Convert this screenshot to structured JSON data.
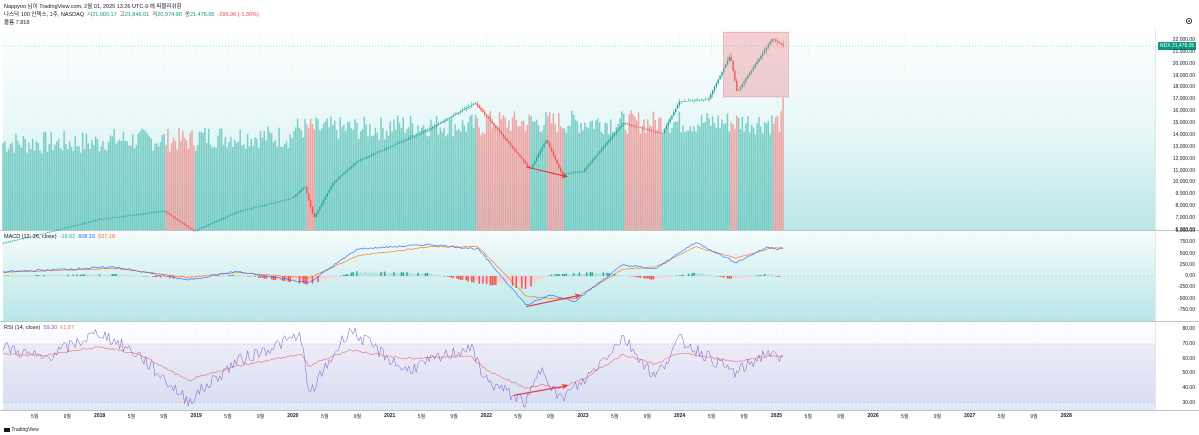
{
  "header": {
    "publisher": "Nappyoo 님이 TradingView.com, 2월 01, 2025 13:26 UTC-9 에 퍼블리쉬함",
    "symbol_line": "나스닥 100 인덱스, 1주, NASDAQ",
    "ohlc": {
      "open_label": "시",
      "open": "21,000.17",
      "high_label": "고",
      "high": "21,846.01",
      "low_label": "저",
      "low": "20,974.90",
      "close_label": "종",
      "close": "21,478.05",
      "change": "-295.96 (-1.36%)"
    },
    "volume_line": "볼륨 7.818"
  },
  "price_tag": "NDX 21,478.05",
  "watermark": "TradingView",
  "colors": {
    "up": "#26a69a",
    "down": "#ef5350",
    "price_bg_top": "#f4fbfb",
    "price_bg_bottom": "#bfe9ea",
    "macd_line": "#2962ff",
    "signal_line": "#ff6d00",
    "rsi_line": "#7e57c2",
    "rsi_ma": "#e57373",
    "annotation": "#e8313b",
    "highlight": "rgba(230,120,125,0.35)"
  },
  "chart_data": [
    {
      "type": "candlestick",
      "title": "나스닥 100 인덱스, 1주, NASDAQ",
      "x_range": [
        "2017-01",
        "2028-12"
      ],
      "ylim": [
        6000,
        23000
      ],
      "y_ticks": [
        "6,000.00",
        "7,000.00",
        "8,000.00",
        "9,000.00",
        "10,000.00",
        "11,000.00",
        "12,000.00",
        "13,000.00",
        "14,000.00",
        "15,000.00",
        "16,000.00",
        "17,000.00",
        "18,000.00",
        "19,000.00",
        "20,000.00",
        "21,000.00",
        "22,000.00"
      ],
      "close_series": [
        [
          "2017-01-01",
          4900
        ],
        [
          "2017-06-01",
          5700
        ],
        [
          "2018-01-01",
          6900
        ],
        [
          "2018-09-01",
          7600
        ],
        [
          "2018-12-24",
          5900
        ],
        [
          "2019-06-01",
          7500
        ],
        [
          "2019-12-31",
          8700
        ],
        [
          "2020-02-15",
          9700
        ],
        [
          "2020-03-20",
          7000
        ],
        [
          "2020-06-01",
          10000
        ],
        [
          "2020-09-01",
          11800
        ],
        [
          "2021-01-01",
          13000
        ],
        [
          "2021-06-01",
          14500
        ],
        [
          "2021-11-19",
          16700
        ],
        [
          "2022-03-01",
          14000
        ],
        [
          "2022-06-16",
          11100
        ],
        [
          "2022-08-15",
          13600
        ],
        [
          "2022-10-13",
          10700
        ],
        [
          "2022-12-31",
          10900
        ],
        [
          "2023-06-01",
          15000
        ],
        [
          "2023-10-27",
          14100
        ],
        [
          "2023-12-31",
          16800
        ],
        [
          "2024-04-19",
          17000
        ],
        [
          "2024-07-10",
          20700
        ],
        [
          "2024-08-05",
          17600
        ],
        [
          "2024-12-16",
          22100
        ],
        [
          "2025-01-31",
          21478
        ]
      ],
      "highlight_box": {
        "x": [
          "2024-06-15",
          "2025-02-15"
        ],
        "y": [
          17200,
          22650
        ]
      },
      "annotation_arrow": {
        "from": [
          "2022-06-01",
          11300
        ],
        "to": [
          "2022-10-31",
          10500
        ]
      }
    },
    {
      "type": "bar",
      "title": "볼륨",
      "note": "weekly volume bars drawn along the bottom of the price pane"
    },
    {
      "type": "line",
      "title": "MACD (12, 26, close)",
      "values_label": "-19.02  608.16  627.18",
      "values": [
        "-19.02",
        "608.16",
        "627.18"
      ],
      "ylim": [
        -1000,
        1000
      ],
      "y_ticks": [
        "1,000.00",
        "750.00",
        "500.00",
        "250.00",
        "0.00",
        "-250.00",
        "-500.00",
        "-750.00"
      ],
      "series": [
        {
          "name": "Histogram",
          "points": [
            [
              "2017-01",
              10
            ],
            [
              "2018-03",
              40
            ],
            [
              "2018-11",
              -60
            ],
            [
              "2019-06",
              30
            ],
            [
              "2020-03",
              -180
            ],
            [
              "2020-09",
              100
            ],
            [
              "2021-06",
              60
            ],
            [
              "2021-12",
              -150
            ],
            [
              "2022-06",
              -250
            ],
            [
              "2022-09",
              30
            ],
            [
              "2023-03",
              90
            ],
            [
              "2023-10",
              -80
            ],
            [
              "2024-03",
              80
            ],
            [
              "2024-08",
              -80
            ],
            [
              "2024-12",
              60
            ],
            [
              "2025-01",
              -19
            ]
          ]
        },
        {
          "name": "MACD",
          "points": [
            [
              "2017-01",
              90
            ],
            [
              "2018-03",
              200
            ],
            [
              "2018-12",
              -90
            ],
            [
              "2019-06",
              100
            ],
            [
              "2020-03",
              -150
            ],
            [
              "2020-09",
              600
            ],
            [
              "2021-06",
              700
            ],
            [
              "2021-12",
              600
            ],
            [
              "2022-06",
              -650
            ],
            [
              "2022-09",
              -420
            ],
            [
              "2022-12",
              -560
            ],
            [
              "2023-06",
              250
            ],
            [
              "2023-10",
              150
            ],
            [
              "2024-03",
              750
            ],
            [
              "2024-08",
              300
            ],
            [
              "2024-12",
              650
            ],
            [
              "2025-01",
              608
            ]
          ]
        },
        {
          "name": "Signal",
          "points": [
            [
              "2017-01",
              80
            ],
            [
              "2018-03",
              170
            ],
            [
              "2018-12",
              -30
            ],
            [
              "2019-06",
              80
            ],
            [
              "2020-03",
              -50
            ],
            [
              "2020-09",
              450
            ],
            [
              "2021-06",
              650
            ],
            [
              "2021-12",
              650
            ],
            [
              "2022-06",
              -450
            ],
            [
              "2022-09",
              -500
            ],
            [
              "2022-12",
              -500
            ],
            [
              "2023-06",
              150
            ],
            [
              "2023-10",
              200
            ],
            [
              "2024-03",
              650
            ],
            [
              "2024-08",
              400
            ],
            [
              "2024-12",
              600
            ],
            [
              "2025-01",
              627
            ]
          ]
        }
      ],
      "annotation_arrow": {
        "from": [
          "2022-06-01",
          -680
        ],
        "to": [
          "2022-12-20",
          -430
        ]
      }
    },
    {
      "type": "line",
      "title": "RSI (14, close)",
      "values_label": "59.30  61.87",
      "values": [
        "59.30",
        "61.87"
      ],
      "ylim": [
        25,
        85
      ],
      "y_ticks": [
        "80.00",
        "70.00",
        "60.00",
        "50.00",
        "40.00",
        "30.00"
      ],
      "bands": [
        30,
        70
      ],
      "series": [
        {
          "name": "RSI",
          "points": [
            [
              "2017-01",
              68
            ],
            [
              "2017-06",
              60
            ],
            [
              "2018-01",
              78
            ],
            [
              "2018-06",
              62
            ],
            [
              "2018-12",
              31
            ],
            [
              "2019-06",
              58
            ],
            [
              "2020-02",
              76
            ],
            [
              "2020-03",
              35
            ],
            [
              "2020-08",
              80
            ],
            [
              "2021-03",
              52
            ],
            [
              "2021-11",
              68
            ],
            [
              "2022-01",
              45
            ],
            [
              "2022-06",
              30
            ],
            [
              "2022-08",
              55
            ],
            [
              "2022-10",
              32
            ],
            [
              "2023-01",
              44
            ],
            [
              "2023-06",
              75
            ],
            [
              "2023-10",
              47
            ],
            [
              "2024-01",
              73
            ],
            [
              "2024-08",
              50
            ],
            [
              "2024-12",
              65
            ],
            [
              "2025-01",
              59.3
            ]
          ]
        },
        {
          "name": "RSI MA",
          "points": [
            [
              "2017-01",
              63
            ],
            [
              "2017-06",
              62
            ],
            [
              "2018-01",
              68
            ],
            [
              "2018-06",
              63
            ],
            [
              "2018-12",
              45
            ],
            [
              "2019-06",
              55
            ],
            [
              "2020-02",
              63
            ],
            [
              "2020-03",
              55
            ],
            [
              "2020-08",
              66
            ],
            [
              "2021-03",
              60
            ],
            [
              "2021-11",
              62
            ],
            [
              "2022-01",
              52
            ],
            [
              "2022-06",
              40
            ],
            [
              "2022-08",
              42
            ],
            [
              "2022-10",
              40
            ],
            [
              "2023-01",
              46
            ],
            [
              "2023-06",
              63
            ],
            [
              "2023-10",
              56
            ],
            [
              "2024-01",
              64
            ],
            [
              "2024-08",
              58
            ],
            [
              "2024-12",
              62
            ],
            [
              "2025-01",
              61.87
            ]
          ]
        }
      ],
      "annotation_arrow": {
        "from": [
          "2022-04-15",
          35
        ],
        "to": [
          "2022-11-01",
          41.5
        ]
      }
    }
  ],
  "x_axis": [
    {
      "label": "5월",
      "date": "2017-05-01"
    },
    {
      "label": "9월",
      "date": "2017-09-01"
    },
    {
      "label": "2018",
      "date": "2018-01-01",
      "year": true
    },
    {
      "label": "5월",
      "date": "2018-05-01"
    },
    {
      "label": "9월",
      "date": "2018-09-01"
    },
    {
      "label": "2019",
      "date": "2019-01-01",
      "year": true
    },
    {
      "label": "5월",
      "date": "2019-05-01"
    },
    {
      "label": "9월",
      "date": "2019-09-01"
    },
    {
      "label": "2020",
      "date": "2020-01-01",
      "year": true
    },
    {
      "label": "5월",
      "date": "2020-05-01"
    },
    {
      "label": "9월",
      "date": "2020-09-01"
    },
    {
      "label": "2021",
      "date": "2021-01-01",
      "year": true
    },
    {
      "label": "5월",
      "date": "2021-05-01"
    },
    {
      "label": "9월",
      "date": "2021-09-01"
    },
    {
      "label": "2022",
      "date": "2022-01-01",
      "year": true
    },
    {
      "label": "5월",
      "date": "2022-05-01"
    },
    {
      "label": "9월",
      "date": "2022-09-01"
    },
    {
      "label": "2023",
      "date": "2023-01-01",
      "year": true
    },
    {
      "label": "5월",
      "date": "2023-05-01"
    },
    {
      "label": "9월",
      "date": "2023-09-01"
    },
    {
      "label": "2024",
      "date": "2024-01-01",
      "year": true
    },
    {
      "label": "5월",
      "date": "2024-05-01"
    },
    {
      "label": "9월",
      "date": "2024-09-01"
    },
    {
      "label": "2025",
      "date": "2025-01-01",
      "year": true
    },
    {
      "label": "5월",
      "date": "2025-05-01"
    },
    {
      "label": "9월",
      "date": "2025-09-01"
    },
    {
      "label": "2026",
      "date": "2026-01-01",
      "year": true
    },
    {
      "label": "5월",
      "date": "2026-05-01"
    },
    {
      "label": "9월",
      "date": "2026-09-01"
    },
    {
      "label": "2027",
      "date": "2027-01-01",
      "year": true
    },
    {
      "label": "5월",
      "date": "2027-05-01"
    },
    {
      "label": "9월",
      "date": "2027-09-01"
    },
    {
      "label": "2028",
      "date": "2028-01-01",
      "year": true
    }
  ]
}
